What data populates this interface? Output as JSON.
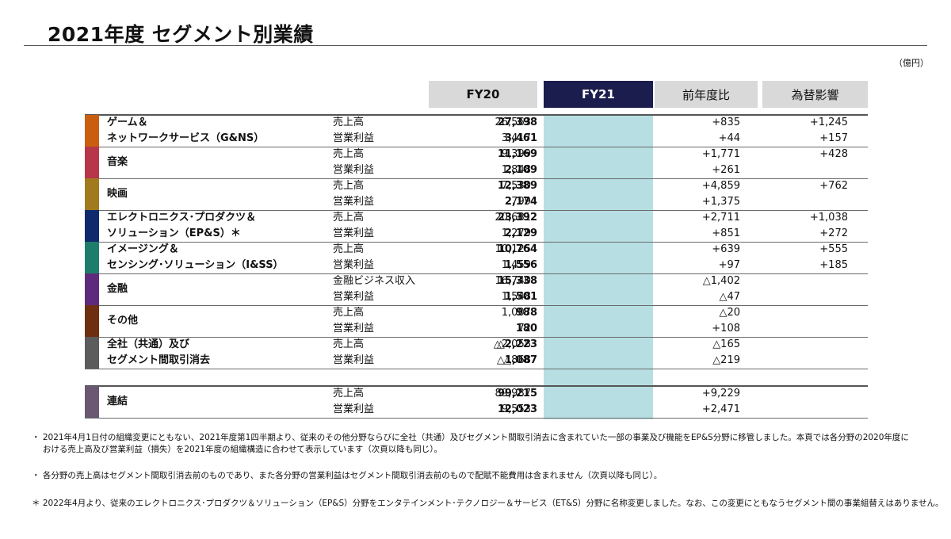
{
  "title": "2021年度 セグメント別業績",
  "unit": "（億円）",
  "headers": {
    "fy20": "FY20",
    "fy21": "FY21",
    "yoy": "前年度比",
    "fx": "為替影響"
  },
  "segments": [
    {
      "name1": "ゲーム＆",
      "name2": "ネットワークサービス（G&NS）",
      "color": "#c95f0e",
      "rows": [
        {
          "metric": "売上高",
          "fy20": "26,563",
          "fy21": "27,398",
          "yoy": "+835",
          "fx": "+1,245"
        },
        {
          "metric": "営業利益",
          "fy20": "3,417",
          "fy21": "3,461",
          "yoy": "+44",
          "fx": "+157"
        }
      ]
    },
    {
      "name1": "音楽",
      "name2": "",
      "color": "#b8364a",
      "rows": [
        {
          "metric": "売上高",
          "fy20": "9,399",
          "fy21": "11,169",
          "yoy": "+1,771",
          "fx": "+428"
        },
        {
          "metric": "営業利益",
          "fy20": "1,848",
          "fy21": "2,109",
          "yoy": "+261",
          "fx": ""
        }
      ]
    },
    {
      "name1": "映画",
      "name2": "",
      "color": "#a27a1e",
      "rows": [
        {
          "metric": "売上高",
          "fy20": "7,530",
          "fy21": "12,389",
          "yoy": "+4,859",
          "fx": "+762"
        },
        {
          "metric": "営業利益",
          "fy20": "799",
          "fy21": "2,174",
          "yoy": "+1,375",
          "fx": ""
        }
      ]
    },
    {
      "name1": "エレクトロニクス･プロダクツ＆",
      "name2": "ソリューション（EP&S）＊",
      "color": "#0e2a6c",
      "rows": [
        {
          "metric": "売上高",
          "fy20": "20,681",
          "fy21": "23,392",
          "yoy": "+2,711",
          "fx": "+1,038"
        },
        {
          "metric": "営業利益",
          "fy20": "1,279",
          "fy21": "2,129",
          "yoy": "+851",
          "fx": "+272"
        }
      ]
    },
    {
      "name1": "イメージング＆",
      "name2": "センシング･ソリューション（I&SS）",
      "color": "#1e7d6a",
      "rows": [
        {
          "metric": "売上高",
          "fy20": "10,125",
          "fy21": "10,764",
          "yoy": "+639",
          "fx": "+555"
        },
        {
          "metric": "営業利益",
          "fy20": "1,459",
          "fy21": "1,556",
          "yoy": "+97",
          "fx": "+185"
        }
      ]
    },
    {
      "name1": "金融",
      "name2": "",
      "color": "#5e2a7e",
      "rows": [
        {
          "metric": "金融ビジネス収入",
          "fy20": "16,740",
          "fy21": "15,338",
          "yoy": "△1,402",
          "fx": ""
        },
        {
          "metric": "営業利益",
          "fy20": "1,548",
          "fy21": "1,501",
          "yoy": "△47",
          "fx": ""
        }
      ]
    },
    {
      "name1": "その他",
      "name2": "",
      "color": "#6e2f10",
      "rows": [
        {
          "metric": "売上高",
          "fy20": "1,007",
          "fy21": "988",
          "yoy": "△20",
          "fx": ""
        },
        {
          "metric": "営業利益",
          "fy20": "72",
          "fy21": "180",
          "yoy": "+108",
          "fx": ""
        }
      ]
    },
    {
      "name1": "全社（共通）及び",
      "name2": "セグメント間取引消去",
      "color": "#5c5c5c",
      "rows": [
        {
          "metric": "売上高",
          "fy20": "△2,058",
          "fy21": "△2,223",
          "yoy": "△165",
          "fx": ""
        },
        {
          "metric": "営業利益",
          "fy20": "△868",
          "fy21": "△1,087",
          "yoy": "△219",
          "fx": ""
        }
      ]
    }
  ],
  "consolidated": {
    "name1": "連結",
    "name2": "",
    "color": "#6a5872",
    "rows": [
      {
        "metric": "売上高",
        "fy20": "89,987",
        "fy21": "99,215",
        "yoy": "+9,229",
        "fx": ""
      },
      {
        "metric": "営業利益",
        "fy20": "9,553",
        "fy21": "12,023",
        "yoy": "+2,471",
        "fx": ""
      }
    ]
  },
  "notes": [
    "・ 2021年4月1日付の組織変更にともない、2021年度第1四半期より、従来のその他分野ならびに全社（共通）及びセグメント間取引消去に含まれていた一部の事業及び機能をEP&S分野に移管しました。本頁では各分野の2020年度に",
    "　 おける売上高及び営業利益（損失）を2021年度の組織構造に合わせて表示しています（次頁以降も同じ）。",
    "・ 各分野の売上高はセグメント間取引消去前のものであり、また各分野の営業利益はセグメント間取引消去前のもので配賦不能費用は含まれません（次頁以降も同じ）。",
    "＊ 2022年4月より、従来のエレクトロニクス･プロダクツ＆ソリューション（EP&S）分野をエンタテインメント･テクノロジー＆サービス（ET&S）分野に名称変更しました。なお、この変更にともなうセグメント間の事業組替えはありません。"
  ]
}
